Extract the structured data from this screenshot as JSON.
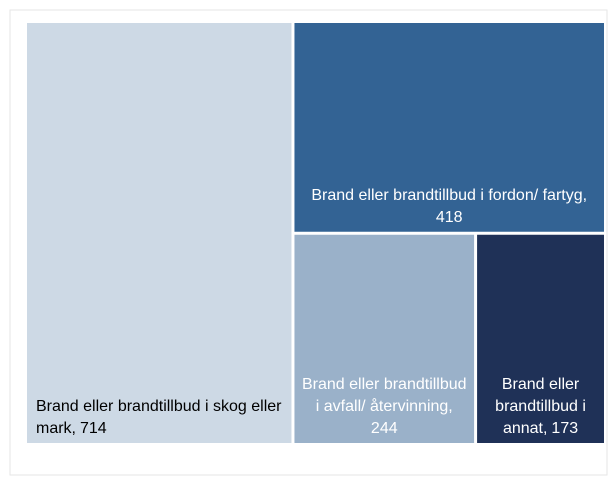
{
  "chart_data": {
    "type": "treemap",
    "categories": [
      "Brand eller brandtillbud i skog eller mark,",
      "Brand eller brandtillbud i fordon/ fartyg,",
      "Brand eller brandtillbud i avfall/ återvinning,",
      "Brand eller brandtillbud i annat,"
    ],
    "values": [
      714,
      418,
      244,
      173
    ],
    "colors": [
      "#cdd9e5",
      "#336394",
      "#9ab1c9",
      "#1f3157"
    ],
    "label_colors": [
      "#000000",
      "#ffffff",
      "#ffffff",
      "#ffffff"
    ]
  }
}
